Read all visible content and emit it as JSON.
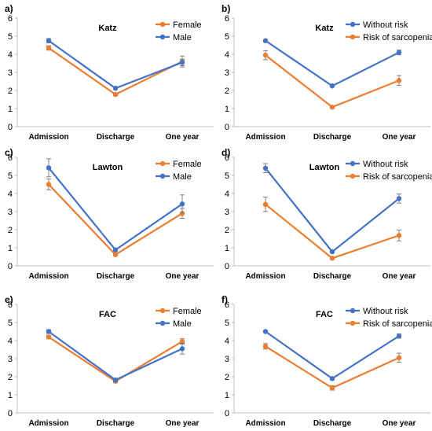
{
  "colors": {
    "blue": "#4472C4",
    "orange": "#ED7D31",
    "axis": "#bfbfbf",
    "text": "#000000",
    "error": "#7f7f7f"
  },
  "chart_data": [
    {
      "panel_label": "a)",
      "title": "Katz",
      "type": "line",
      "categories": [
        "Admission",
        "Discharge",
        "One year"
      ],
      "ylim": [
        0,
        6
      ],
      "yticks": [
        0,
        1,
        2,
        3,
        4,
        5,
        6
      ],
      "legend": "top-right",
      "series": [
        {
          "name": "Female",
          "color": "#ED7D31",
          "values": [
            4.35,
            1.78,
            3.6
          ],
          "errors": [
            0.12,
            0.08,
            0.3
          ]
        },
        {
          "name": "Male",
          "color": "#4472C4",
          "values": [
            4.75,
            2.12,
            3.55
          ],
          "errors": [
            0.12,
            0.07,
            0.18
          ]
        }
      ]
    },
    {
      "panel_label": "b)",
      "title": "Katz",
      "type": "line",
      "categories": [
        "Admission",
        "Discharge",
        "One year"
      ],
      "ylim": [
        0,
        6
      ],
      "yticks": [
        0,
        1,
        2,
        3,
        4,
        5,
        6
      ],
      "legend": "top-right",
      "series": [
        {
          "name": "Without risk",
          "color": "#4472C4",
          "values": [
            4.75,
            2.25,
            4.1
          ],
          "errors": [
            0.07,
            0.05,
            0.13
          ]
        },
        {
          "name": "Risk of sarcopenia",
          "color": "#ED7D31",
          "values": [
            3.95,
            1.08,
            2.55
          ],
          "errors": [
            0.25,
            0.07,
            0.27
          ]
        }
      ]
    },
    {
      "panel_label": "c)",
      "title": "Lawton",
      "type": "line",
      "categories": [
        "Admission",
        "Discharge",
        "One year"
      ],
      "ylim": [
        0,
        6
      ],
      "yticks": [
        0,
        1,
        2,
        3,
        4,
        5,
        6
      ],
      "legend": "top-right",
      "series": [
        {
          "name": "Female",
          "color": "#ED7D31",
          "values": [
            4.5,
            0.62,
            2.9
          ],
          "errors": [
            0.3,
            0.06,
            0.27
          ]
        },
        {
          "name": "Male",
          "color": "#4472C4",
          "values": [
            5.42,
            0.88,
            3.42
          ],
          "errors": [
            0.5,
            0.08,
            0.5
          ]
        }
      ]
    },
    {
      "panel_label": "d)",
      "title": "Lawton",
      "type": "line",
      "categories": [
        "Admission",
        "Discharge",
        "One year"
      ],
      "ylim": [
        0,
        6
      ],
      "yticks": [
        0,
        1,
        2,
        3,
        4,
        5,
        6
      ],
      "legend": "top-right",
      "series": [
        {
          "name": "Without risk",
          "color": "#4472C4",
          "values": [
            5.4,
            0.78,
            3.72
          ],
          "errors": [
            0.25,
            0.06,
            0.25
          ]
        },
        {
          "name": "Risk of sarcopenia",
          "color": "#ED7D31",
          "values": [
            3.4,
            0.42,
            1.68
          ],
          "errors": [
            0.4,
            0.05,
            0.3
          ]
        }
      ]
    },
    {
      "panel_label": "e)",
      "title": "FAC",
      "type": "line",
      "categories": [
        "Admission",
        "Discharge",
        "One year"
      ],
      "ylim": [
        0,
        6
      ],
      "yticks": [
        0,
        1,
        2,
        3,
        4,
        5,
        6
      ],
      "legend": "top-right",
      "series": [
        {
          "name": "Female",
          "color": "#ED7D31",
          "values": [
            4.2,
            1.75,
            3.95
          ],
          "errors": [
            0.1,
            0.08,
            0.15
          ]
        },
        {
          "name": "Male",
          "color": "#4472C4",
          "values": [
            4.5,
            1.82,
            3.55
          ],
          "errors": [
            0.1,
            0.1,
            0.3
          ]
        }
      ]
    },
    {
      "panel_label": "f)",
      "title": "FAC",
      "type": "line",
      "categories": [
        "Admission",
        "Discharge",
        "One year"
      ],
      "ylim": [
        0,
        6
      ],
      "yticks": [
        0,
        1,
        2,
        3,
        4,
        5,
        6
      ],
      "legend": "top-right",
      "series": [
        {
          "name": "Without risk",
          "color": "#4472C4",
          "values": [
            4.5,
            1.9,
            4.25
          ],
          "errors": [
            0.06,
            0.07,
            0.12
          ]
        },
        {
          "name": "Risk of sarcopenia",
          "color": "#ED7D31",
          "values": [
            3.68,
            1.38,
            3.05
          ],
          "errors": [
            0.15,
            0.12,
            0.25
          ]
        }
      ]
    }
  ]
}
